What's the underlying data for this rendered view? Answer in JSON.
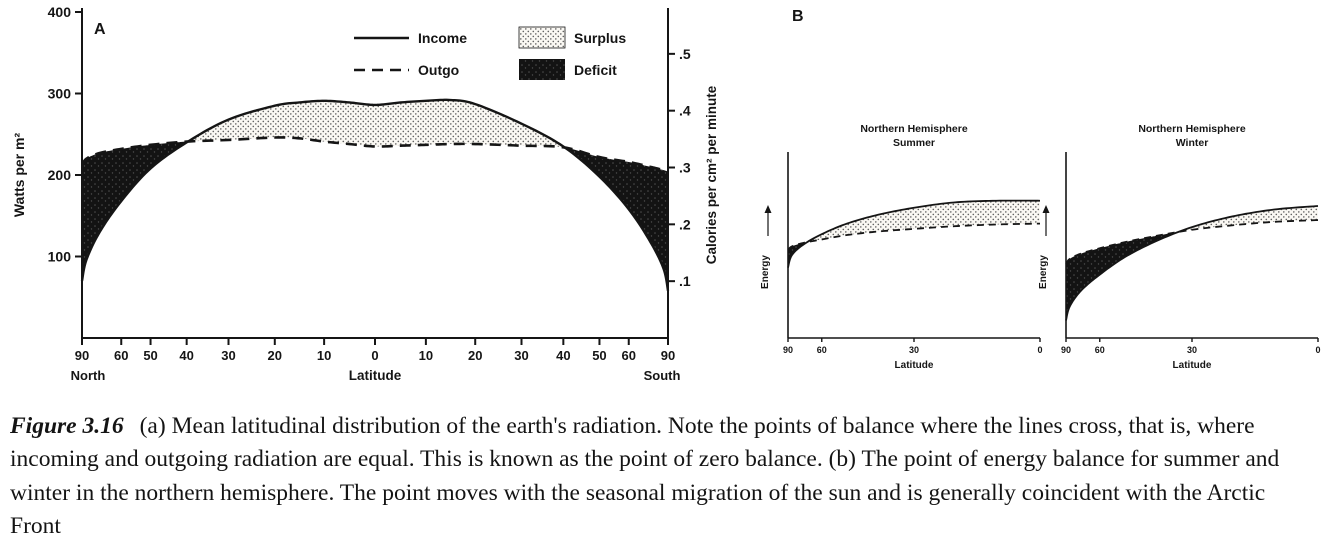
{
  "figure": {
    "caption_label": "Figure 3.16",
    "caption_text": "(a) Mean latitudinal distribution of the earth's radiation. Note the points of balance where the lines cross, that is, where incoming and outgoing radiation are equal. This is known as the point of zero balance. (b) The point of energy balance for summer and winter in the northern hemisphere. The point moves with the seasonal migration of the sun and is generally coincident with the Arctic Front",
    "background": "#ffffff"
  },
  "colors": {
    "ink": "#151515",
    "surplus_bg": "#faf8f3",
    "surplus_dot": "#5f5f5f",
    "deficit_bg": "#131313",
    "deficit_speck": "#4d4d4d"
  },
  "chart_data": [
    {
      "id": "radiation-balance",
      "panel_label": "A",
      "type": "area",
      "x_scale": "sine-of-latitude",
      "xlabel": "Latitude",
      "x_left_label": "North",
      "x_right_label": "South",
      "ylabel_left": "Watts per m²",
      "ylabel_right": "Calories per cm² per minute",
      "ylim_watts": [
        0,
        400
      ],
      "y_ticks_left": [
        100,
        200,
        300,
        400
      ],
      "y_ticks_right": [
        ".1",
        ".2",
        ".3",
        ".4",
        ".5"
      ],
      "watts_per_cal_unit": 697.3,
      "legend_position": "top-center",
      "x_ticks": [
        {
          "lat": -90,
          "label": "90"
        },
        {
          "lat": -60,
          "label": "60"
        },
        {
          "lat": -50,
          "label": "50"
        },
        {
          "lat": -40,
          "label": "40"
        },
        {
          "lat": -30,
          "label": "30"
        },
        {
          "lat": -20,
          "label": "20"
        },
        {
          "lat": -10,
          "label": "10"
        },
        {
          "lat": 0,
          "label": "0"
        },
        {
          "lat": 10,
          "label": "10"
        },
        {
          "lat": 20,
          "label": "20"
        },
        {
          "lat": 30,
          "label": "30"
        },
        {
          "lat": 40,
          "label": "40"
        },
        {
          "lat": 50,
          "label": "50"
        },
        {
          "lat": 60,
          "label": "60"
        },
        {
          "lat": 90,
          "label": "90"
        }
      ],
      "legend": [
        {
          "label": "Income",
          "style": "solid-line"
        },
        {
          "label": "Outgo",
          "style": "dashed-line"
        },
        {
          "label": "Surplus",
          "style": "stipple-fill"
        },
        {
          "label": "Deficit",
          "style": "black-fill"
        }
      ],
      "lats": [
        -90,
        -80,
        -70,
        -60,
        -50,
        -40,
        -30,
        -20,
        -15,
        -10,
        -5,
        0,
        5,
        10,
        15,
        20,
        30,
        40,
        50,
        60,
        70,
        80,
        90
      ],
      "series": [
        {
          "name": "Income",
          "style": "solid",
          "values_watts": [
            70,
            96,
            130,
            168,
            208,
            240,
            268,
            285,
            289,
            291,
            289,
            286,
            289,
            291,
            292,
            287,
            263,
            235,
            198,
            158,
            118,
            85,
            58
          ]
        },
        {
          "name": "Outgo",
          "style": "dashed",
          "values_watts": [
            212,
            220,
            227,
            232,
            237,
            241,
            243,
            246,
            245,
            241,
            238,
            235,
            236,
            237,
            238,
            238,
            236,
            234,
            222,
            216,
            210,
            206,
            204
          ]
        }
      ]
    },
    {
      "id": "nh-summer",
      "panel_label": "B",
      "type": "area",
      "title_lines": [
        "Northern Hemisphere",
        "Summer"
      ],
      "xlabel": "Latitude",
      "ylabel": "Energy",
      "x_scale": "sine-of-latitude",
      "ylim": [
        0,
        100
      ],
      "x_ticks": [
        {
          "lat": 90,
          "label": "90"
        },
        {
          "lat": 60,
          "label": "60"
        },
        {
          "lat": 30,
          "label": "30"
        },
        {
          "lat": 0,
          "label": "0"
        }
      ],
      "lats": [
        90,
        80,
        70,
        60,
        50,
        40,
        30,
        20,
        10,
        0
      ],
      "series": [
        {
          "name": "Income",
          "style": "solid",
          "values": [
            40,
            47,
            53,
            59,
            65,
            70,
            74,
            77,
            78,
            78
          ]
        },
        {
          "name": "Outgo",
          "style": "dashed",
          "values": [
            50,
            52,
            54,
            56,
            58.5,
            60.5,
            62,
            63.5,
            64.5,
            65
          ]
        }
      ]
    },
    {
      "id": "nh-winter",
      "type": "area",
      "title_lines": [
        "Northern Hemisphere",
        "Winter"
      ],
      "xlabel": "Latitude",
      "ylabel": "Energy",
      "x_scale": "sine-of-latitude",
      "ylim": [
        0,
        100
      ],
      "x_ticks": [
        {
          "lat": 90,
          "label": "90"
        },
        {
          "lat": 60,
          "label": "60"
        },
        {
          "lat": 30,
          "label": "30"
        },
        {
          "lat": 0,
          "label": "0"
        }
      ],
      "lats": [
        90,
        80,
        70,
        60,
        50,
        40,
        30,
        20,
        10,
        0
      ],
      "series": [
        {
          "name": "Income",
          "style": "solid",
          "values": [
            10,
            18,
            27,
            36,
            46,
            55,
            63,
            69,
            73,
            75
          ]
        },
        {
          "name": "Outgo",
          "style": "dashed",
          "values": [
            42,
            45,
            48,
            51,
            54.5,
            58,
            61.5,
            64,
            66,
            67
          ]
        }
      ]
    }
  ]
}
